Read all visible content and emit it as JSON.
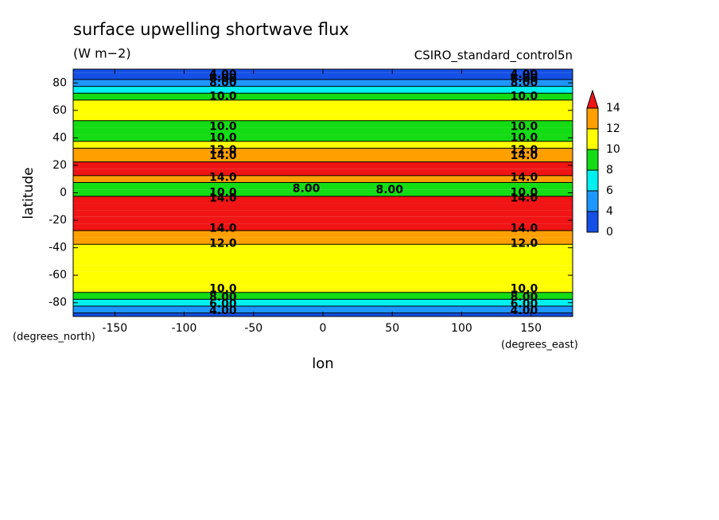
{
  "chart_data": {
    "type": "contour",
    "title": "surface upwelling shortwave flux",
    "subtitle": "(W m−2)",
    "dataset": "CSIRO_standard_control5n",
    "x_label": "lon",
    "y_label": "latitude",
    "x_units": "(degrees_east)",
    "y_units": "(degrees_north)",
    "xlim": [
      -180,
      180
    ],
    "xticks": [
      -150,
      -100,
      -50,
      0,
      50,
      100,
      150
    ],
    "ylim": [
      -90,
      90
    ],
    "yticks": [
      -80,
      -60,
      -40,
      -20,
      0,
      20,
      40,
      60,
      80
    ],
    "y": [
      -90,
      -85,
      -80,
      -75,
      -70,
      -65,
      -60,
      -55,
      -50,
      -45,
      -40,
      -35,
      -30,
      -25,
      -20,
      -15,
      -10,
      -5,
      0,
      5,
      10,
      15,
      20,
      25,
      30,
      35,
      40,
      45,
      50,
      55,
      60,
      65,
      70,
      75,
      80,
      85,
      90
    ],
    "values": [
      3,
      5,
      7,
      9,
      10,
      10.5,
      10.5,
      10.5,
      10.5,
      10.5,
      11,
      12.5,
      13,
      14,
      15,
      15,
      15,
      15,
      8.5,
      9,
      13,
      14.5,
      14.5,
      13,
      12.5,
      10.5,
      9.5,
      9,
      9,
      10.5,
      11,
      11,
      9,
      7,
      5,
      3,
      2
    ],
    "levels": [
      0,
      4,
      6,
      8,
      10,
      12,
      14
    ],
    "colors": [
      "#1450e6",
      "#1e96ff",
      "#00f0f0",
      "#14dc14",
      "#ffff00",
      "#ffa000",
      "#f01414"
    ],
    "contour_labels": [
      {
        "value": 4,
        "label": "4.00",
        "lon": -72,
        "lat": 86
      },
      {
        "value": 6,
        "label": "6.00",
        "lon": -72,
        "lat": 83
      },
      {
        "value": 8,
        "label": "8.00",
        "lon": -72,
        "lat": 80
      },
      {
        "value": 10,
        "label": "10.0",
        "lon": -72,
        "lat": 70
      },
      {
        "value": 10,
        "label": "10.0",
        "lon": -72,
        "lat": 48
      },
      {
        "value": 10,
        "label": "10.0",
        "lon": -72,
        "lat": 40
      },
      {
        "value": 12,
        "label": "12.0",
        "lon": -72,
        "lat": 31
      },
      {
        "value": 14,
        "label": "14.0",
        "lon": -72,
        "lat": 27
      },
      {
        "value": 14,
        "label": "14.0",
        "lon": -72,
        "lat": 11
      },
      {
        "value": 10,
        "label": "10.0",
        "lon": -72,
        "lat": 0
      },
      {
        "value": 14,
        "label": "14.0",
        "lon": -72,
        "lat": -4
      },
      {
        "value": 14,
        "label": "14.0",
        "lon": -72,
        "lat": -26
      },
      {
        "value": 12,
        "label": "12.0",
        "lon": -72,
        "lat": -37
      },
      {
        "value": 10,
        "label": "10.0",
        "lon": -72,
        "lat": -70
      },
      {
        "value": 8,
        "label": "8.00",
        "lon": -72,
        "lat": -76
      },
      {
        "value": 6,
        "label": "6.00",
        "lon": -72,
        "lat": -81
      },
      {
        "value": 4,
        "label": "4.00",
        "lon": -72,
        "lat": -86
      },
      {
        "value": 8,
        "label": "8.00",
        "lon": -12,
        "lat": 3
      },
      {
        "value": 8,
        "label": "8.00",
        "lon": 48,
        "lat": 2
      },
      {
        "value": 4,
        "label": "4.00",
        "lon": 145,
        "lat": 86
      },
      {
        "value": 6,
        "label": "6.00",
        "lon": 145,
        "lat": 83
      },
      {
        "value": 8,
        "label": "8.00",
        "lon": 145,
        "lat": 80
      },
      {
        "value": 10,
        "label": "10.0",
        "lon": 145,
        "lat": 70
      },
      {
        "value": 10,
        "label": "10.0",
        "lon": 145,
        "lat": 48
      },
      {
        "value": 10,
        "label": "10.0",
        "lon": 145,
        "lat": 40
      },
      {
        "value": 12,
        "label": "12.0",
        "lon": 145,
        "lat": 31
      },
      {
        "value": 14,
        "label": "14.0",
        "lon": 145,
        "lat": 27
      },
      {
        "value": 14,
        "label": "14.0",
        "lon": 145,
        "lat": 11
      },
      {
        "value": 10,
        "label": "10.0",
        "lon": 145,
        "lat": 0
      },
      {
        "value": 14,
        "label": "14.0",
        "lon": 145,
        "lat": -4
      },
      {
        "value": 14,
        "label": "14.0",
        "lon": 145,
        "lat": -26
      },
      {
        "value": 12,
        "label": "12.0",
        "lon": 145,
        "lat": -37
      },
      {
        "value": 10,
        "label": "10.0",
        "lon": 145,
        "lat": -70
      },
      {
        "value": 8,
        "label": "8.00",
        "lon": 145,
        "lat": -76
      },
      {
        "value": 6,
        "label": "6.00",
        "lon": 145,
        "lat": -81
      },
      {
        "value": 4,
        "label": "4.00",
        "lon": 145,
        "lat": -86
      }
    ]
  }
}
